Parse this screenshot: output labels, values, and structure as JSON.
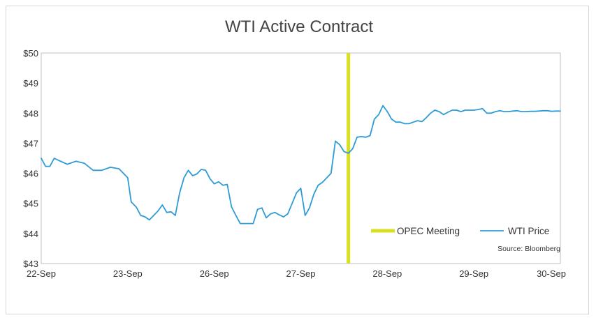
{
  "chart_data": {
    "type": "line",
    "title": "WTI Active Contract",
    "xlabel": "",
    "ylabel": "",
    "categories": [
      "22-Sep",
      "23-Sep",
      "26-Sep",
      "27-Sep",
      "28-Sep",
      "29-Sep",
      "30-Sep"
    ],
    "ylim": [
      43,
      50
    ],
    "yticks": [
      "$43",
      "$44",
      "$45",
      "$46",
      "$47",
      "$48",
      "$49",
      "$50"
    ],
    "grid": false,
    "legend_position": "bottom-right",
    "series": [
      {
        "name": "WTI Price",
        "color": "#2e9bd6",
        "x": [
          0,
          0.05,
          0.1,
          0.15,
          0.2,
          0.3,
          0.4,
          0.5,
          0.6,
          0.7,
          0.8,
          0.9,
          1.0,
          1.04,
          1.1,
          1.15,
          1.2,
          1.25,
          1.3,
          1.35,
          1.4,
          1.45,
          1.5,
          1.55,
          1.6,
          1.65,
          1.7,
          1.75,
          1.8,
          1.85,
          1.9,
          1.95,
          2.0,
          2.05,
          2.1,
          2.15,
          2.2,
          2.25,
          2.3,
          2.35,
          2.4,
          2.45,
          2.5,
          2.55,
          2.6,
          2.65,
          2.7,
          2.75,
          2.8,
          2.85,
          2.9,
          2.95,
          3.0,
          3.05,
          3.1,
          3.15,
          3.2,
          3.25,
          3.3,
          3.35,
          3.4,
          3.45,
          3.5,
          3.55,
          3.6,
          3.65,
          3.7,
          3.75,
          3.8,
          3.85,
          3.9,
          3.95,
          4.0,
          4.05,
          4.1,
          4.15,
          4.2,
          4.25,
          4.3,
          4.35,
          4.4,
          4.45,
          4.5,
          4.55,
          4.6,
          4.65,
          4.7,
          4.75,
          4.8,
          4.85,
          4.9,
          4.95,
          5.0,
          5.05,
          5.1,
          5.15,
          5.2,
          5.25,
          5.3,
          5.35,
          5.4,
          5.45,
          5.5,
          5.55,
          5.6,
          5.65,
          5.7,
          5.75,
          5.8,
          5.85,
          5.9,
          5.95,
          6.0
        ],
        "values": [
          46.5,
          46.23,
          46.23,
          46.5,
          46.43,
          46.3,
          46.4,
          46.33,
          46.1,
          46.1,
          46.2,
          46.15,
          45.85,
          45.05,
          44.87,
          44.6,
          44.55,
          44.45,
          44.6,
          44.75,
          44.95,
          44.7,
          44.72,
          44.6,
          45.35,
          45.85,
          46.1,
          45.92,
          45.98,
          46.13,
          46.1,
          45.82,
          45.65,
          45.72,
          45.6,
          45.63,
          44.88,
          44.6,
          44.33,
          44.33,
          44.33,
          44.33,
          44.8,
          44.85,
          44.52,
          44.65,
          44.7,
          44.62,
          44.55,
          44.65,
          45.0,
          45.35,
          45.5,
          44.6,
          44.85,
          45.3,
          45.6,
          45.7,
          45.85,
          46.0,
          47.07,
          46.95,
          46.72,
          46.67,
          46.82,
          47.2,
          47.22,
          47.2,
          47.25,
          47.8,
          47.95,
          48.25,
          48.05,
          47.8,
          47.7,
          47.7,
          47.65,
          47.65,
          47.7,
          47.75,
          47.72,
          47.85,
          48.0,
          48.1,
          48.05,
          47.95,
          48.03,
          48.1,
          48.1,
          48.05,
          48.1,
          48.1,
          48.1,
          48.12,
          48.15,
          48.0,
          48.0,
          48.05,
          48.08,
          48.05,
          48.05,
          48.07,
          48.08,
          48.05,
          48.05,
          48.06,
          48.06,
          48.07,
          48.08,
          48.08,
          48.06,
          48.07,
          48.07
        ]
      },
      {
        "name": "OPEC Meeting",
        "color": "#d9e021",
        "type": "vertical-line",
        "x": 3.55
      }
    ],
    "source": "Source: Bloomberg"
  }
}
